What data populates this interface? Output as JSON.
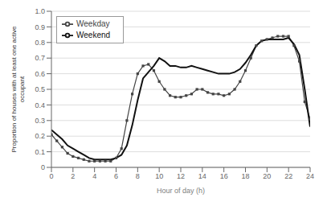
{
  "chart_data": {
    "type": "line",
    "xlabel": "Hour of day (h)",
    "ylabel": "Proportion of houses with at least one active\noccupant",
    "xlim": [
      0,
      24
    ],
    "ylim": [
      0,
      1
    ],
    "xticks": [
      0,
      2,
      4,
      6,
      8,
      10,
      12,
      14,
      16,
      18,
      20,
      22,
      24
    ],
    "yticks": [
      0,
      0.1,
      0.2,
      0.3,
      0.4,
      0.5,
      0.6,
      0.7,
      0.8,
      0.9,
      {
        "value": 1,
        "label": "1.0"
      }
    ],
    "grid": true,
    "legend": "upper left",
    "x": [
      0,
      0.5,
      1,
      1.5,
      2,
      2.5,
      3,
      3.5,
      4,
      4.5,
      5,
      5.5,
      6,
      6.5,
      7,
      7.5,
      8,
      8.5,
      9,
      9.5,
      10,
      10.5,
      11,
      11.5,
      12,
      12.5,
      13,
      13.5,
      14,
      14.5,
      15,
      15.5,
      16,
      16.5,
      17,
      17.5,
      18,
      18.5,
      19,
      19.5,
      20,
      20.5,
      21,
      21.5,
      22,
      22.5,
      23,
      23.5,
      24
    ],
    "series": [
      {
        "name": "Weekday",
        "color": "#444444",
        "marker": "square",
        "values": [
          0.21,
          0.17,
          0.13,
          0.09,
          0.07,
          0.06,
          0.05,
          0.04,
          0.04,
          0.04,
          0.04,
          0.04,
          0.06,
          0.12,
          0.3,
          0.47,
          0.6,
          0.65,
          0.66,
          0.62,
          0.55,
          0.5,
          0.46,
          0.45,
          0.45,
          0.46,
          0.47,
          0.5,
          0.5,
          0.48,
          0.47,
          0.47,
          0.46,
          0.47,
          0.5,
          0.55,
          0.62,
          0.7,
          0.78,
          0.81,
          0.82,
          0.83,
          0.84,
          0.84,
          0.84,
          0.78,
          0.68,
          0.42,
          0.31
        ]
      },
      {
        "name": "Weekend",
        "color": "#111111",
        "values": [
          0.24,
          0.21,
          0.18,
          0.14,
          0.12,
          0.1,
          0.08,
          0.06,
          0.05,
          0.05,
          0.05,
          0.05,
          0.06,
          0.08,
          0.14,
          0.27,
          0.43,
          0.57,
          0.61,
          0.65,
          0.7,
          0.68,
          0.65,
          0.65,
          0.64,
          0.64,
          0.65,
          0.64,
          0.63,
          0.62,
          0.61,
          0.6,
          0.6,
          0.6,
          0.61,
          0.63,
          0.67,
          0.72,
          0.78,
          0.81,
          0.82,
          0.82,
          0.82,
          0.82,
          0.83,
          0.79,
          0.72,
          0.5,
          0.26
        ]
      }
    ]
  }
}
